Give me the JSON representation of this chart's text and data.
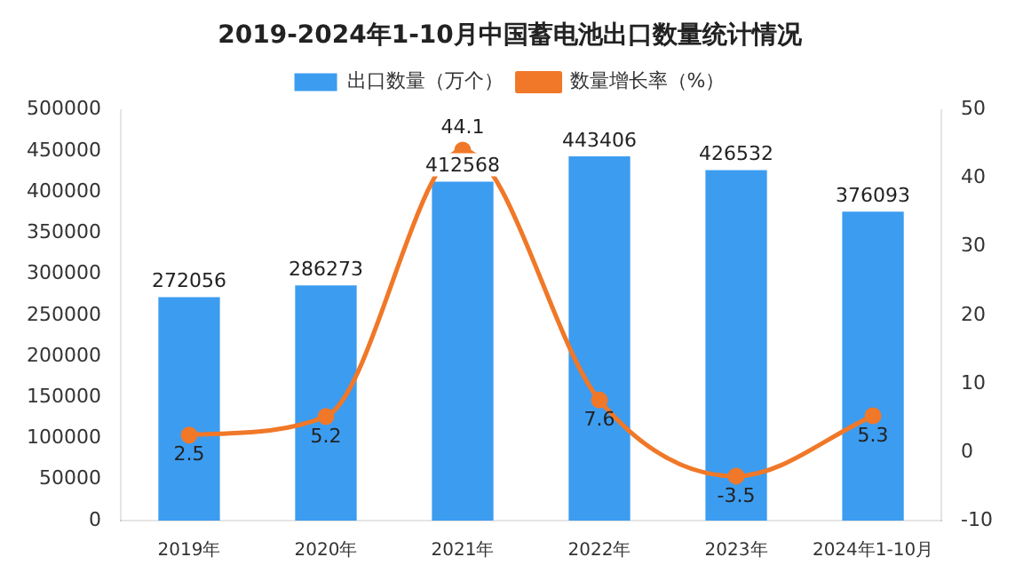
{
  "chart_data": {
    "type": "bar",
    "title": "2019-2024年1-10月中国蓄电池出口数量统计情况",
    "categories": [
      "2019年",
      "2020年",
      "2021年",
      "2022年",
      "2023年",
      "2024年1-10月"
    ],
    "series": [
      {
        "name": "出口数量（万个）",
        "color": "#3c9cf0",
        "values": [
          272056,
          286273,
          412568,
          443406,
          426532,
          376093
        ]
      },
      {
        "name": "数量增长率（%）",
        "type": "line",
        "axis": "y2",
        "color": "#f07828",
        "marker": "circle",
        "values": [
          2.5,
          5.2,
          44.1,
          7.6,
          -3.5,
          5.3
        ]
      }
    ],
    "ylim": [
      0,
      500000
    ],
    "yticks": [
      0,
      50000,
      100000,
      150000,
      200000,
      250000,
      300000,
      350000,
      400000,
      450000,
      500000
    ],
    "y2lim": [
      -10,
      50
    ],
    "y2ticks": [
      -10,
      0,
      10,
      20,
      30,
      40,
      50
    ],
    "data_labels": true,
    "legend": "top",
    "grid": false
  }
}
